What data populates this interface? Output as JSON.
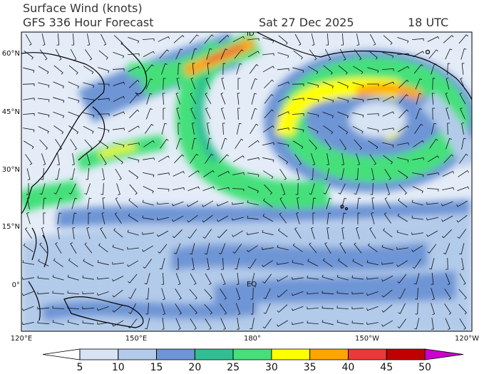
{
  "header": {
    "title": "Surface Wind (knots)",
    "subtitle": "GFS 336 Hour Forecast",
    "date": "Sat 27 Dec 2025",
    "time": "18 UTC"
  },
  "axes": {
    "lat_labels": [
      "60°N",
      "45°N",
      "30°N",
      "15°N",
      "0°"
    ],
    "lon_labels": [
      "120°E",
      "150°E",
      "180°",
      "150°W",
      "120°W"
    ]
  },
  "map_labels": [
    "EQ",
    "ID"
  ],
  "colorbar": {
    "ticks": [
      5,
      10,
      15,
      20,
      25,
      30,
      35,
      40,
      45,
      50
    ],
    "colors": [
      "#ffffff",
      "#d6e4f4",
      "#b3cbea",
      "#6e95d5",
      "#2fbf93",
      "#45e07a",
      "#ffff00",
      "#ffa500",
      "#e83a3a",
      "#c00000",
      "#cc00cc"
    ]
  }
}
